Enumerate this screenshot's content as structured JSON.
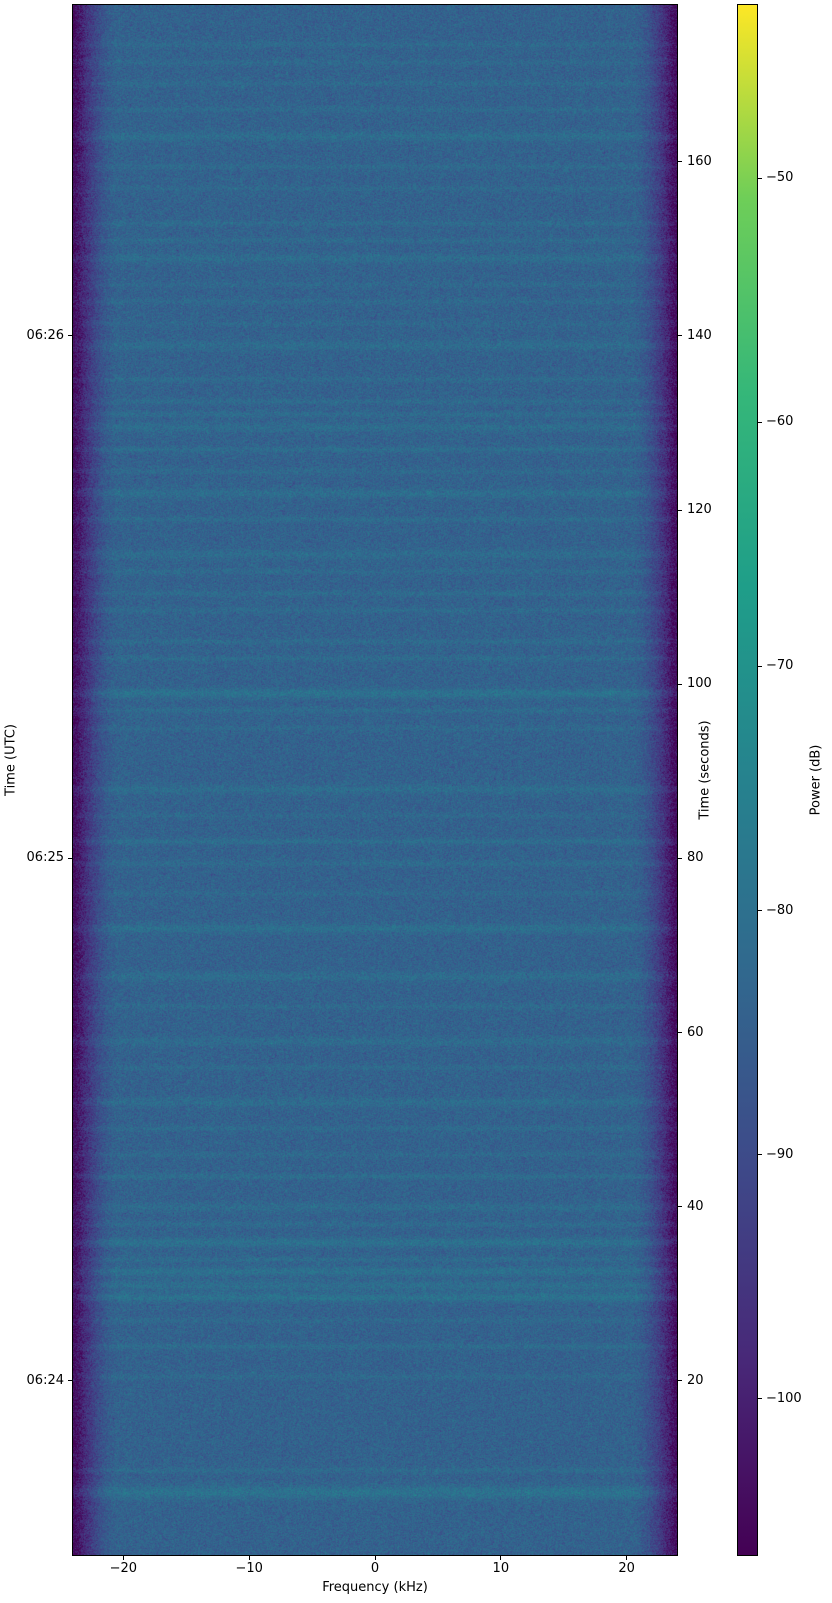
{
  "figure": {
    "background_color": "#ffffff",
    "text_color": "#000000",
    "spine_color": "#000000"
  },
  "chart_data": {
    "type": "heatmap",
    "subtype": "spectrogram-waterfall",
    "title": "",
    "xlabel": "Frequency (kHz)",
    "ylabel_left": "Time (UTC)",
    "ylabel_right": "Time (seconds)",
    "colorbar_label": "Power (dB)",
    "colormap": "viridis",
    "x_range_khz": [
      -24,
      24
    ],
    "time_range_seconds": [
      0,
      178
    ],
    "power_range_db": [
      -106.4,
      -42.9
    ],
    "noise_floor_db": -84,
    "noise_std_db": 2.6,
    "edge_rolloff_width_khz": 3.5,
    "x_ticks": [
      {
        "value": -20,
        "label": "−20"
      },
      {
        "value": -10,
        "label": "−10"
      },
      {
        "value": 0,
        "label": "0"
      },
      {
        "value": 10,
        "label": "10"
      },
      {
        "value": 20,
        "label": "20"
      }
    ],
    "utc_ticks": [
      {
        "seconds": 140,
        "label": "06:26"
      },
      {
        "seconds": 80,
        "label": "06:25"
      },
      {
        "seconds": 20,
        "label": "06:24"
      }
    ],
    "seconds_ticks": [
      {
        "value": 160,
        "label": "160"
      },
      {
        "value": 140,
        "label": "140"
      },
      {
        "value": 120,
        "label": "120"
      },
      {
        "value": 100,
        "label": "100"
      },
      {
        "value": 80,
        "label": "80"
      },
      {
        "value": 60,
        "label": "60"
      },
      {
        "value": 40,
        "label": "40"
      },
      {
        "value": 20,
        "label": "20"
      }
    ],
    "colorbar_ticks": [
      {
        "value": -50,
        "label": "−50"
      },
      {
        "value": -60,
        "label": "−60"
      },
      {
        "value": -70,
        "label": "−70"
      },
      {
        "value": -80,
        "label": "−80"
      },
      {
        "value": -90,
        "label": "−90"
      },
      {
        "value": -100,
        "label": "−100"
      }
    ],
    "viridis_stops": [
      "#440154",
      "#482878",
      "#3e4989",
      "#31688e",
      "#26828e",
      "#1f9e89",
      "#35b779",
      "#6ece58",
      "#fde725"
    ],
    "streaks": [
      {
        "t": 173.5,
        "db": 2.2,
        "w": 1
      },
      {
        "t": 171.5,
        "db": 2.0,
        "w": 1
      },
      {
        "t": 169.0,
        "db": 2.2,
        "w": 1
      },
      {
        "t": 166.0,
        "db": 2.0,
        "w": 1
      },
      {
        "t": 163.0,
        "db": 3.2,
        "w": 2
      },
      {
        "t": 159.5,
        "db": 2.2,
        "w": 1
      },
      {
        "t": 157.0,
        "db": 1.8,
        "w": 1
      },
      {
        "t": 153.0,
        "db": 2.4,
        "w": 1
      },
      {
        "t": 151.0,
        "db": 2.2,
        "w": 1
      },
      {
        "t": 149.0,
        "db": 2.8,
        "w": 2
      },
      {
        "t": 146.0,
        "db": 1.8,
        "w": 1
      },
      {
        "t": 144.0,
        "db": 2.0,
        "w": 1
      },
      {
        "t": 141.5,
        "db": 1.8,
        "w": 1
      },
      {
        "t": 139.0,
        "db": 2.8,
        "w": 2
      },
      {
        "t": 135.0,
        "db": 2.2,
        "w": 1
      },
      {
        "t": 132.5,
        "db": 2.4,
        "w": 1
      },
      {
        "t": 131.0,
        "db": 2.6,
        "w": 1
      },
      {
        "t": 129.5,
        "db": 2.8,
        "w": 2
      },
      {
        "t": 127.0,
        "db": 3.0,
        "w": 1
      },
      {
        "t": 124.5,
        "db": 2.0,
        "w": 1
      },
      {
        "t": 122.0,
        "db": 3.2,
        "w": 2
      },
      {
        "t": 119.0,
        "db": 2.4,
        "w": 1
      },
      {
        "t": 115.0,
        "db": 2.6,
        "w": 2
      },
      {
        "t": 113.0,
        "db": 2.2,
        "w": 1
      },
      {
        "t": 110.5,
        "db": 2.4,
        "w": 1
      },
      {
        "t": 108.5,
        "db": 2.2,
        "w": 1
      },
      {
        "t": 105.0,
        "db": 2.4,
        "w": 1
      },
      {
        "t": 103.0,
        "db": 2.6,
        "w": 1
      },
      {
        "t": 99.0,
        "db": 4.5,
        "w": 2
      },
      {
        "t": 97.0,
        "db": 2.4,
        "w": 1
      },
      {
        "t": 95.0,
        "db": 1.8,
        "w": 1
      },
      {
        "t": 88.0,
        "db": 3.0,
        "w": 2
      },
      {
        "t": 85.0,
        "db": 1.8,
        "w": 1
      },
      {
        "t": 82.0,
        "db": 3.2,
        "w": 1
      },
      {
        "t": 79.5,
        "db": 2.4,
        "w": 1
      },
      {
        "t": 76.0,
        "db": 1.8,
        "w": 1
      },
      {
        "t": 72.0,
        "db": 3.6,
        "w": 2
      },
      {
        "t": 66.5,
        "db": 3.0,
        "w": 2
      },
      {
        "t": 63.0,
        "db": 2.2,
        "w": 1
      },
      {
        "t": 59.0,
        "db": 2.6,
        "w": 2
      },
      {
        "t": 56.0,
        "db": 2.2,
        "w": 1
      },
      {
        "t": 52.0,
        "db": 2.8,
        "w": 2
      },
      {
        "t": 49.0,
        "db": 2.4,
        "w": 1
      },
      {
        "t": 46.0,
        "db": 2.0,
        "w": 1
      },
      {
        "t": 43.5,
        "db": 3.2,
        "w": 1
      },
      {
        "t": 40.0,
        "db": 2.6,
        "w": 2
      },
      {
        "t": 38.0,
        "db": 2.4,
        "w": 1
      },
      {
        "t": 36.0,
        "db": 4.2,
        "w": 2
      },
      {
        "t": 34.0,
        "db": 2.6,
        "w": 1
      },
      {
        "t": 32.6,
        "db": 4.0,
        "w": 2
      },
      {
        "t": 31.0,
        "db": 3.4,
        "w": 2
      },
      {
        "t": 29.6,
        "db": 4.4,
        "w": 2
      },
      {
        "t": 27.0,
        "db": 2.0,
        "w": 1
      },
      {
        "t": 24.0,
        "db": 2.8,
        "w": 1
      },
      {
        "t": 20.5,
        "db": 2.0,
        "w": 1
      },
      {
        "t": 9.8,
        "db": 2.4,
        "w": 1
      },
      {
        "t": 7.2,
        "db": 4.6,
        "w": 3
      }
    ]
  }
}
